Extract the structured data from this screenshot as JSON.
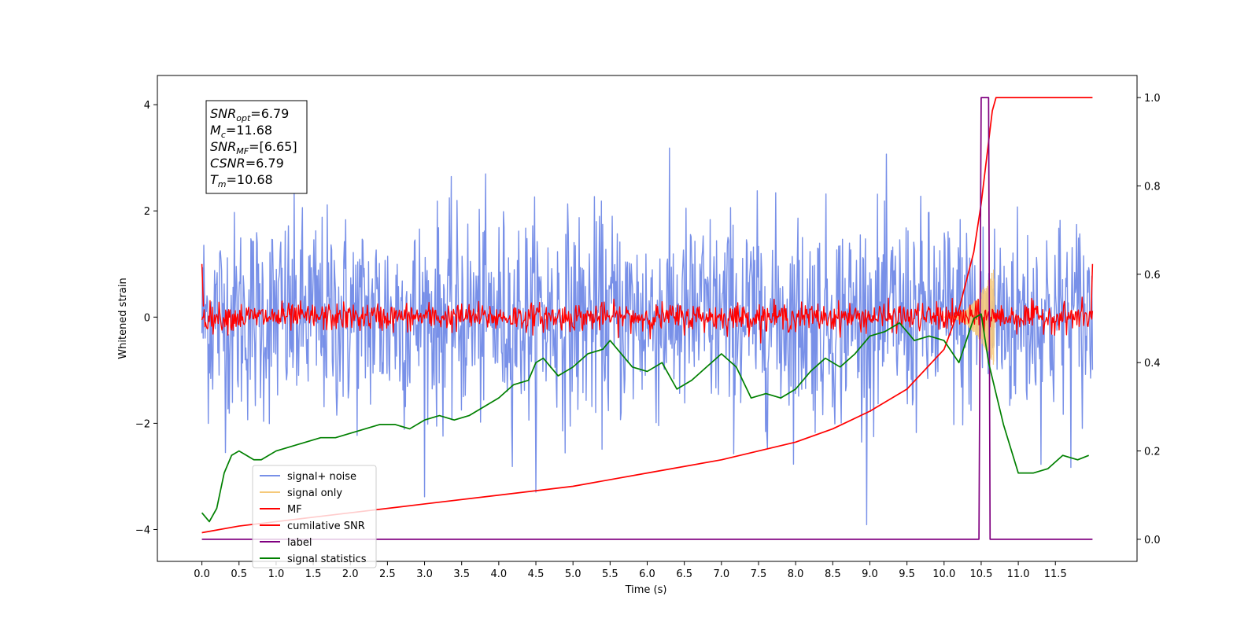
{
  "chart_data": {
    "type": "line",
    "xlabel": "Time (s)",
    "ylabel": "Whitened strain",
    "x_ticks": [
      0.0,
      0.5,
      1.0,
      1.5,
      2.0,
      2.5,
      3.0,
      3.5,
      4.0,
      4.5,
      5.0,
      5.5,
      6.0,
      6.5,
      7.0,
      7.5,
      8.0,
      8.5,
      9.0,
      9.5,
      10.0,
      10.5,
      11.0,
      11.5
    ],
    "x_tick_labels": [
      "0.0",
      "0.5",
      "1.0",
      "1.5",
      "2.0",
      "2.5",
      "3.0",
      "3.5",
      "4.0",
      "4.5",
      "5.0",
      "5.5",
      "6.0",
      "6.5",
      "7.0",
      "7.5",
      "8.0",
      "8.5",
      "9.0",
      "9.5",
      "10.0",
      "10.5",
      "11.0",
      "11.5"
    ],
    "xlim": [
      -0.6,
      12.6
    ],
    "left_y": {
      "ticks": [
        -4,
        -2,
        0,
        2,
        4
      ],
      "tick_labels": [
        "−4",
        "−2",
        "0",
        "2",
        "4"
      ],
      "ylim": [
        -4.6,
        4.55
      ]
    },
    "right_y": {
      "ticks": [
        0.0,
        0.2,
        0.4,
        0.6,
        0.8,
        1.0
      ],
      "tick_labels": [
        "0.0",
        "0.2",
        "0.4",
        "0.6",
        "0.8",
        "1.0"
      ],
      "ylim": [
        -0.05,
        1.05
      ]
    },
    "annotation": [
      {
        "base": "SNR",
        "sub": "opt",
        "value": "=6.79"
      },
      {
        "base": "M",
        "sub": "c",
        "value": "=11.68"
      },
      {
        "base": "SNR",
        "sub": "MF",
        "value": "=[6.65]"
      },
      {
        "base": "CSNR",
        "sub": "",
        "value": "=6.79"
      },
      {
        "base": "T",
        "sub": "m",
        "value": "=10.68"
      }
    ],
    "legend_position": "lower-left",
    "series": [
      {
        "name": "signal+ noise",
        "color": "#7890e8",
        "axis": "left",
        "kind": "noise",
        "x_range": [
          0,
          12
        ],
        "amplitude": 1.35,
        "peak": 4.1
      },
      {
        "name": "signal only",
        "color": "#f5c97a",
        "axis": "left",
        "kind": "chirp",
        "x_range": [
          10.0,
          10.68
        ],
        "peak": 0.95
      },
      {
        "name": "MF",
        "color": "#ff0000",
        "axis": "left",
        "kind": "noise",
        "x_range": [
          0,
          12
        ],
        "amplitude": 0.18,
        "peak": 1.0
      },
      {
        "name": "cumilative SNR",
        "color": "#ff0000",
        "axis": "right",
        "x": [
          0.0,
          0.5,
          1.0,
          1.5,
          2.0,
          3.0,
          4.0,
          5.0,
          6.0,
          7.0,
          8.0,
          8.5,
          9.0,
          9.5,
          10.0,
          10.2,
          10.4,
          10.5,
          10.6,
          10.65,
          10.7,
          12.0
        ],
        "y": [
          0.015,
          0.03,
          0.04,
          0.05,
          0.06,
          0.08,
          0.1,
          0.12,
          0.15,
          0.18,
          0.22,
          0.25,
          0.29,
          0.34,
          0.43,
          0.52,
          0.65,
          0.76,
          0.9,
          0.97,
          1.0,
          1.0
        ]
      },
      {
        "name": "label",
        "color": "#800080",
        "axis": "right",
        "x": [
          0.0,
          10.47,
          10.5,
          10.6,
          10.62,
          12.0
        ],
        "y": [
          0.0,
          0.0,
          1.0,
          1.0,
          0.0,
          0.0
        ]
      },
      {
        "name": "signal statistics",
        "color": "#008000",
        "axis": "right",
        "x": [
          0.0,
          0.1,
          0.2,
          0.3,
          0.4,
          0.5,
          0.6,
          0.7,
          0.8,
          1.0,
          1.2,
          1.4,
          1.6,
          1.8,
          2.0,
          2.2,
          2.4,
          2.6,
          2.8,
          3.0,
          3.2,
          3.4,
          3.6,
          3.8,
          4.0,
          4.2,
          4.4,
          4.5,
          4.6,
          4.8,
          5.0,
          5.2,
          5.4,
          5.5,
          5.6,
          5.8,
          6.0,
          6.2,
          6.4,
          6.6,
          6.8,
          7.0,
          7.2,
          7.4,
          7.6,
          7.8,
          8.0,
          8.2,
          8.4,
          8.6,
          8.8,
          9.0,
          9.2,
          9.4,
          9.6,
          9.8,
          10.0,
          10.2,
          10.4,
          10.5,
          10.6,
          10.8,
          11.0,
          11.2,
          11.4,
          11.6,
          11.8,
          11.95
        ],
        "y": [
          0.06,
          0.04,
          0.07,
          0.15,
          0.19,
          0.2,
          0.19,
          0.18,
          0.18,
          0.2,
          0.21,
          0.22,
          0.23,
          0.23,
          0.24,
          0.25,
          0.26,
          0.26,
          0.25,
          0.27,
          0.28,
          0.27,
          0.28,
          0.3,
          0.32,
          0.35,
          0.36,
          0.4,
          0.41,
          0.37,
          0.39,
          0.42,
          0.43,
          0.45,
          0.43,
          0.39,
          0.38,
          0.4,
          0.34,
          0.36,
          0.39,
          0.42,
          0.39,
          0.32,
          0.33,
          0.32,
          0.34,
          0.38,
          0.41,
          0.39,
          0.42,
          0.46,
          0.47,
          0.49,
          0.45,
          0.46,
          0.45,
          0.4,
          0.5,
          0.51,
          0.4,
          0.26,
          0.15,
          0.15,
          0.16,
          0.19,
          0.18,
          0.19
        ]
      }
    ]
  }
}
